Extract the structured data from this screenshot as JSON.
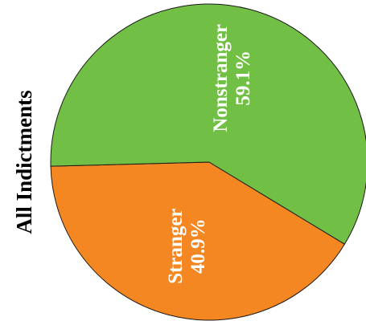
{
  "chart_data": {
    "type": "pie",
    "title": "All Indictments",
    "slices": [
      {
        "label": "Stranger",
        "percent_label": "40.9%",
        "value": 40.9,
        "color": "#f58722"
      },
      {
        "label": "Nonstranger",
        "percent_label": "59.1%",
        "value": 59.1,
        "color": "#71bf44"
      }
    ],
    "label_color": "#ffffff",
    "legend": "none"
  }
}
